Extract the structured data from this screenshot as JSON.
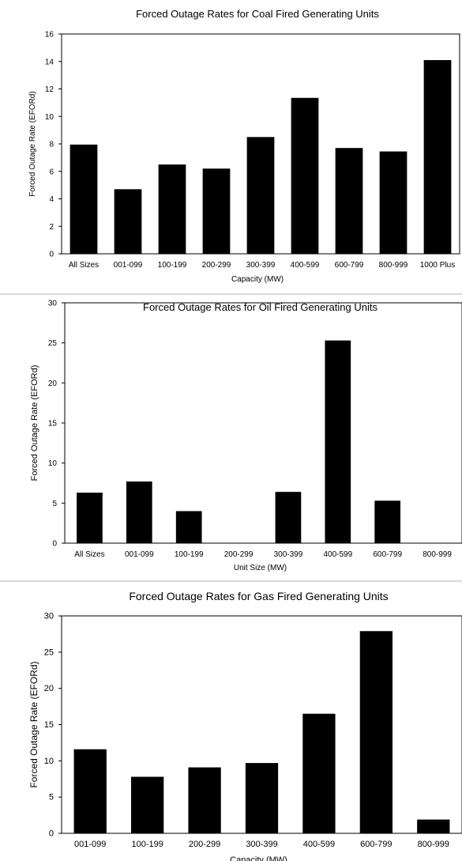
{
  "chart_data": [
    {
      "type": "bar",
      "title": "Forced Outage Rates for Coal Fired Generating Units",
      "xlabel": "Capacity (MW)",
      "ylabel": "Forced Outage Rate (EFORd)",
      "categories": [
        "All Sizes",
        "001-099",
        "100-199",
        "200-299",
        "300-399",
        "400-599",
        "600-799",
        "800-999",
        "1000 Plus"
      ],
      "values": [
        7.95,
        4.7,
        6.5,
        6.2,
        8.5,
        11.35,
        7.7,
        7.45,
        14.1
      ],
      "ylim": [
        0,
        16
      ],
      "yticks": [
        0,
        2,
        4,
        6,
        8,
        10,
        12,
        14,
        16
      ],
      "grid": false,
      "legend": "none",
      "bar_color": "#000000"
    },
    {
      "type": "bar",
      "title": "Forced Outage Rates for Oil Fired Generating Units",
      "xlabel": "Unit Size (MW)",
      "ylabel": "Forced Outage Rate (EFORd)",
      "categories": [
        "All Sizes",
        "001-099",
        "100-199",
        "200-299",
        "300-399",
        "400-599",
        "600-799",
        "800-999"
      ],
      "values": [
        6.3,
        7.7,
        4.0,
        0,
        6.4,
        25.3,
        5.3,
        0
      ],
      "ylim": [
        0,
        30
      ],
      "yticks": [
        0,
        5,
        10,
        15,
        20,
        25,
        30
      ],
      "grid": false,
      "legend": "none",
      "bar_color": "#000000"
    },
    {
      "type": "bar",
      "title": "Forced Outage Rates for Gas Fired Generating Units",
      "xlabel": "Capacity (MW)",
      "ylabel": "Forced Outage Rate (EFORd)",
      "categories": [
        "001-099",
        "100-199",
        "200-299",
        "300-399",
        "400-599",
        "600-799",
        "800-999"
      ],
      "values": [
        11.6,
        7.8,
        9.1,
        9.7,
        16.5,
        27.9,
        1.9
      ],
      "ylim": [
        0,
        30
      ],
      "yticks": [
        0,
        5,
        10,
        15,
        20,
        25,
        30
      ],
      "grid": false,
      "legend": "none",
      "bar_color": "#000000"
    }
  ]
}
